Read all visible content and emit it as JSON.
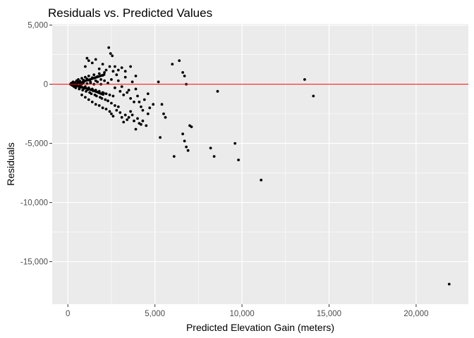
{
  "chart_data": {
    "type": "scatter",
    "title": "Residuals vs. Predicted Values",
    "xlabel": "Predicted Elevation Gain (meters)",
    "ylabel": "Residuals",
    "xlim": [
      -900,
      23000
    ],
    "ylim": [
      -18600,
      5100
    ],
    "x_ticks": [
      0,
      5000,
      10000,
      15000,
      20000
    ],
    "x_tick_labels": [
      "0",
      "5,000",
      "10,000",
      "15,000",
      "20,000"
    ],
    "y_ticks": [
      5000,
      0,
      -5000,
      -10000,
      -15000
    ],
    "y_tick_labels": [
      "5,000",
      "0",
      "-5,000",
      "-10,000",
      "-15,000"
    ],
    "reference_line": {
      "y": 0,
      "color": "#ff0000"
    },
    "background": "#ebebeb",
    "grid": true,
    "point_color": "#000000",
    "points": [
      [
        200,
        100
      ],
      [
        250,
        -100
      ],
      [
        300,
        200
      ],
      [
        350,
        -200
      ],
      [
        400,
        150
      ],
      [
        450,
        -300
      ],
      [
        500,
        300
      ],
      [
        550,
        -150
      ],
      [
        600,
        400
      ],
      [
        650,
        -400
      ],
      [
        700,
        250
      ],
      [
        750,
        -250
      ],
      [
        800,
        500
      ],
      [
        850,
        -500
      ],
      [
        900,
        350
      ],
      [
        950,
        -350
      ],
      [
        1000,
        600
      ],
      [
        1050,
        -600
      ],
      [
        1100,
        450
      ],
      [
        1150,
        -450
      ],
      [
        1200,
        700
      ],
      [
        1250,
        -700
      ],
      [
        1300,
        200
      ],
      [
        1350,
        -800
      ],
      [
        1400,
        550
      ],
      [
        1450,
        -550
      ],
      [
        1500,
        800
      ],
      [
        1550,
        -900
      ],
      [
        1600,
        300
      ],
      [
        1650,
        -1000
      ],
      [
        1700,
        650
      ],
      [
        1750,
        -650
      ],
      [
        1800,
        900
      ],
      [
        1850,
        -1100
      ],
      [
        1900,
        400
      ],
      [
        1950,
        -1200
      ],
      [
        2000,
        750
      ],
      [
        2050,
        -750
      ],
      [
        2100,
        1000
      ],
      [
        2150,
        -1300
      ],
      [
        300,
        0
      ],
      [
        400,
        50
      ],
      [
        500,
        -50
      ],
      [
        600,
        100
      ],
      [
        700,
        -100
      ],
      [
        800,
        0
      ],
      [
        900,
        150
      ],
      [
        1000,
        -200
      ],
      [
        1100,
        50
      ],
      [
        1200,
        -300
      ],
      [
        1300,
        100
      ],
      [
        1400,
        -400
      ],
      [
        1500,
        0
      ],
      [
        1600,
        -500
      ],
      [
        1700,
        200
      ],
      [
        1800,
        -600
      ],
      [
        1900,
        0
      ],
      [
        2000,
        -700
      ],
      [
        2100,
        300
      ],
      [
        2200,
        -800
      ],
      [
        2300,
        100
      ],
      [
        2400,
        -900
      ],
      [
        2500,
        400
      ],
      [
        2600,
        -1000
      ],
      [
        2200,
        1200
      ],
      [
        2300,
        -1400
      ],
      [
        2400,
        1500
      ],
      [
        2500,
        -1600
      ],
      [
        2600,
        1100
      ],
      [
        2700,
        -1800
      ],
      [
        2800,
        800
      ],
      [
        2900,
        -1900
      ],
      [
        1000,
        1500
      ],
      [
        1100,
        2200
      ],
      [
        1200,
        2000
      ],
      [
        1400,
        1800
      ],
      [
        1600,
        2100
      ],
      [
        1800,
        1300
      ],
      [
        2000,
        1700
      ],
      [
        2350,
        3100
      ],
      [
        2450,
        2600
      ],
      [
        2550,
        2400
      ],
      [
        2700,
        1500
      ],
      [
        2900,
        1200
      ],
      [
        3100,
        1400
      ],
      [
        3300,
        1100
      ],
      [
        3600,
        1500
      ],
      [
        3900,
        700
      ],
      [
        800,
        -900
      ],
      [
        1000,
        -1100
      ],
      [
        1200,
        -1300
      ],
      [
        1400,
        -1500
      ],
      [
        1600,
        -1700
      ],
      [
        1800,
        -1800
      ],
      [
        2000,
        -2000
      ],
      [
        2200,
        -2100
      ],
      [
        2400,
        -2300
      ],
      [
        2500,
        -2500
      ],
      [
        2600,
        -2700
      ],
      [
        2800,
        -2200
      ],
      [
        3000,
        -2400
      ],
      [
        3100,
        -2800
      ],
      [
        3200,
        -3200
      ],
      [
        3300,
        -2600
      ],
      [
        3400,
        -3000
      ],
      [
        3500,
        -2800
      ],
      [
        3600,
        -2300
      ],
      [
        3700,
        -2600
      ],
      [
        3800,
        -3100
      ],
      [
        3900,
        -3800
      ],
      [
        4000,
        -2900
      ],
      [
        4100,
        -3300
      ],
      [
        4200,
        -3400
      ],
      [
        4300,
        -3100
      ],
      [
        4500,
        -3500
      ],
      [
        4600,
        -2500
      ],
      [
        4700,
        -2000
      ],
      [
        4900,
        -1700
      ],
      [
        3000,
        -600
      ],
      [
        3200,
        -900
      ],
      [
        3400,
        -700
      ],
      [
        3600,
        -1200
      ],
      [
        3800,
        -1500
      ],
      [
        4000,
        -1000
      ],
      [
        4200,
        -1900
      ],
      [
        4400,
        -1300
      ],
      [
        4600,
        -800
      ],
      [
        2700,
        -300
      ],
      [
        2900,
        300
      ],
      [
        3100,
        -200
      ],
      [
        3300,
        600
      ],
      [
        3500,
        -500
      ],
      [
        3700,
        200
      ],
      [
        3900,
        -400
      ],
      [
        4100,
        -1500
      ],
      [
        4300,
        -2200
      ],
      [
        5200,
        200
      ],
      [
        5400,
        -1700
      ],
      [
        5300,
        -4500
      ],
      [
        5500,
        -2500
      ],
      [
        5600,
        -2800
      ],
      [
        6000,
        1700
      ],
      [
        6100,
        -6100
      ],
      [
        6400,
        2000
      ],
      [
        6600,
        1000
      ],
      [
        6700,
        700
      ],
      [
        6800,
        0
      ],
      [
        6600,
        -4200
      ],
      [
        6700,
        -4800
      ],
      [
        6800,
        -5300
      ],
      [
        6900,
        -5600
      ],
      [
        7000,
        -3500
      ],
      [
        7100,
        -3600
      ],
      [
        8200,
        -5400
      ],
      [
        8400,
        -6100
      ],
      [
        8600,
        -600
      ],
      [
        9600,
        -5000
      ],
      [
        9800,
        -6400
      ],
      [
        11100,
        -8100
      ],
      [
        13600,
        400
      ],
      [
        14100,
        -1000
      ],
      [
        21900,
        -16900
      ],
      [
        150,
        0
      ],
      [
        180,
        50
      ],
      [
        220,
        -50
      ],
      [
        260,
        80
      ],
      [
        320,
        -80
      ],
      [
        380,
        120
      ],
      [
        420,
        -120
      ],
      [
        480,
        60
      ],
      [
        520,
        -60
      ],
      [
        580,
        180
      ],
      [
        620,
        -180
      ],
      [
        680,
        90
      ],
      [
        720,
        -220
      ],
      [
        780,
        130
      ],
      [
        820,
        -260
      ],
      [
        880,
        230
      ],
      [
        920,
        -300
      ],
      [
        980,
        280
      ],
      [
        1020,
        -330
      ],
      [
        1080,
        320
      ],
      [
        1120,
        -380
      ],
      [
        1180,
        360
      ],
      [
        1220,
        -420
      ],
      [
        1280,
        410
      ],
      [
        1320,
        -460
      ],
      [
        1380,
        460
      ],
      [
        1420,
        -510
      ],
      [
        1480,
        510
      ],
      [
        1520,
        -560
      ],
      [
        1580,
        560
      ],
      [
        1620,
        -620
      ],
      [
        1680,
        610
      ],
      [
        1720,
        -680
      ],
      [
        1780,
        660
      ],
      [
        1820,
        -740
      ],
      [
        1880,
        710
      ],
      [
        1920,
        -800
      ],
      [
        1980,
        760
      ],
      [
        2020,
        -860
      ],
      [
        2080,
        820
      ]
    ]
  }
}
